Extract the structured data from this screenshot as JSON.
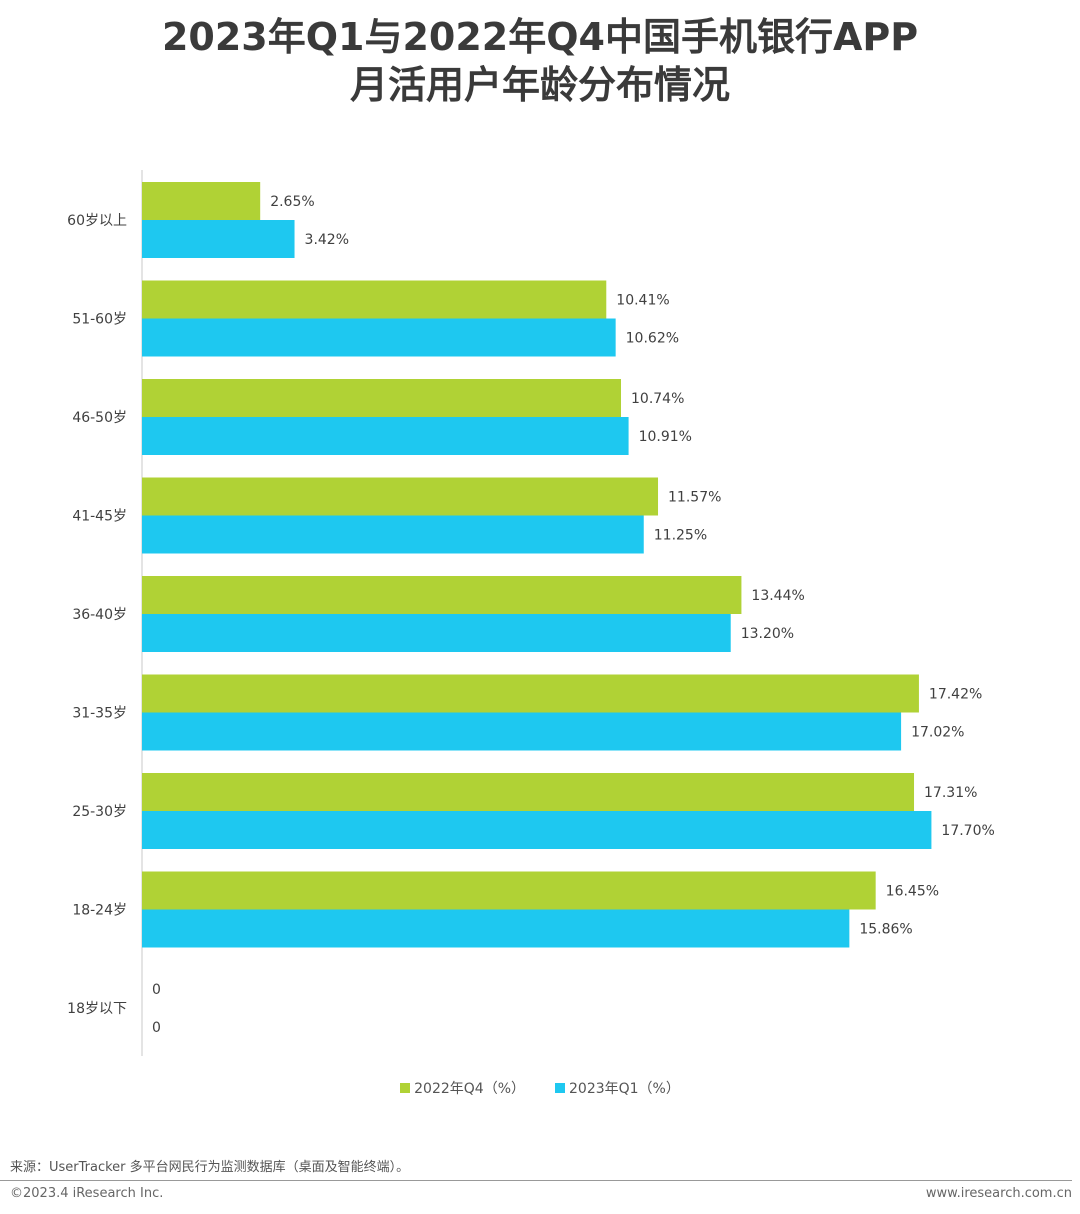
{
  "title_line1": "2023年Q1与2022年Q4中国手机银行APP",
  "title_line2": "月活用户年龄分布情况",
  "colors": {
    "series_2022q4": "#b0d235",
    "series_2023q1": "#1ec8f0",
    "axis": "#c8c8c8",
    "text": "#404040"
  },
  "chart_data": {
    "type": "bar",
    "orientation": "horizontal",
    "title": "2023年Q1与2022年Q4中国手机银行APP月活用户年龄分布情况",
    "categories": [
      "60岁以上",
      "51-60岁",
      "46-50岁",
      "41-45岁",
      "36-40岁",
      "31-35岁",
      "25-30岁",
      "18-24岁",
      "18岁以下"
    ],
    "series": [
      {
        "name": "2022年Q4（%）",
        "values": [
          2.65,
          10.41,
          10.74,
          11.57,
          13.44,
          17.42,
          17.31,
          16.45,
          0
        ],
        "labels": [
          "2.65%",
          "10.41%",
          "10.74%",
          "11.57%",
          "13.44%",
          "17.42%",
          "17.31%",
          "16.45%",
          "0"
        ]
      },
      {
        "name": "2023年Q1（%）",
        "values": [
          3.42,
          10.62,
          10.91,
          11.25,
          13.2,
          17.02,
          17.7,
          15.86,
          0
        ],
        "labels": [
          "3.42%",
          "10.62%",
          "10.91%",
          "11.25%",
          "13.20%",
          "17.02%",
          "17.70%",
          "15.86%",
          "0"
        ]
      }
    ],
    "xlim": [
      0,
      20
    ],
    "grid": false,
    "legend_position": "bottom"
  },
  "footer": {
    "source": "来源：UserTracker 多平台网民行为监测数据库（桌面及智能终端）。",
    "copyright": "©2023.4 iResearch Inc.",
    "website": "www.iresearch.com.cn"
  }
}
